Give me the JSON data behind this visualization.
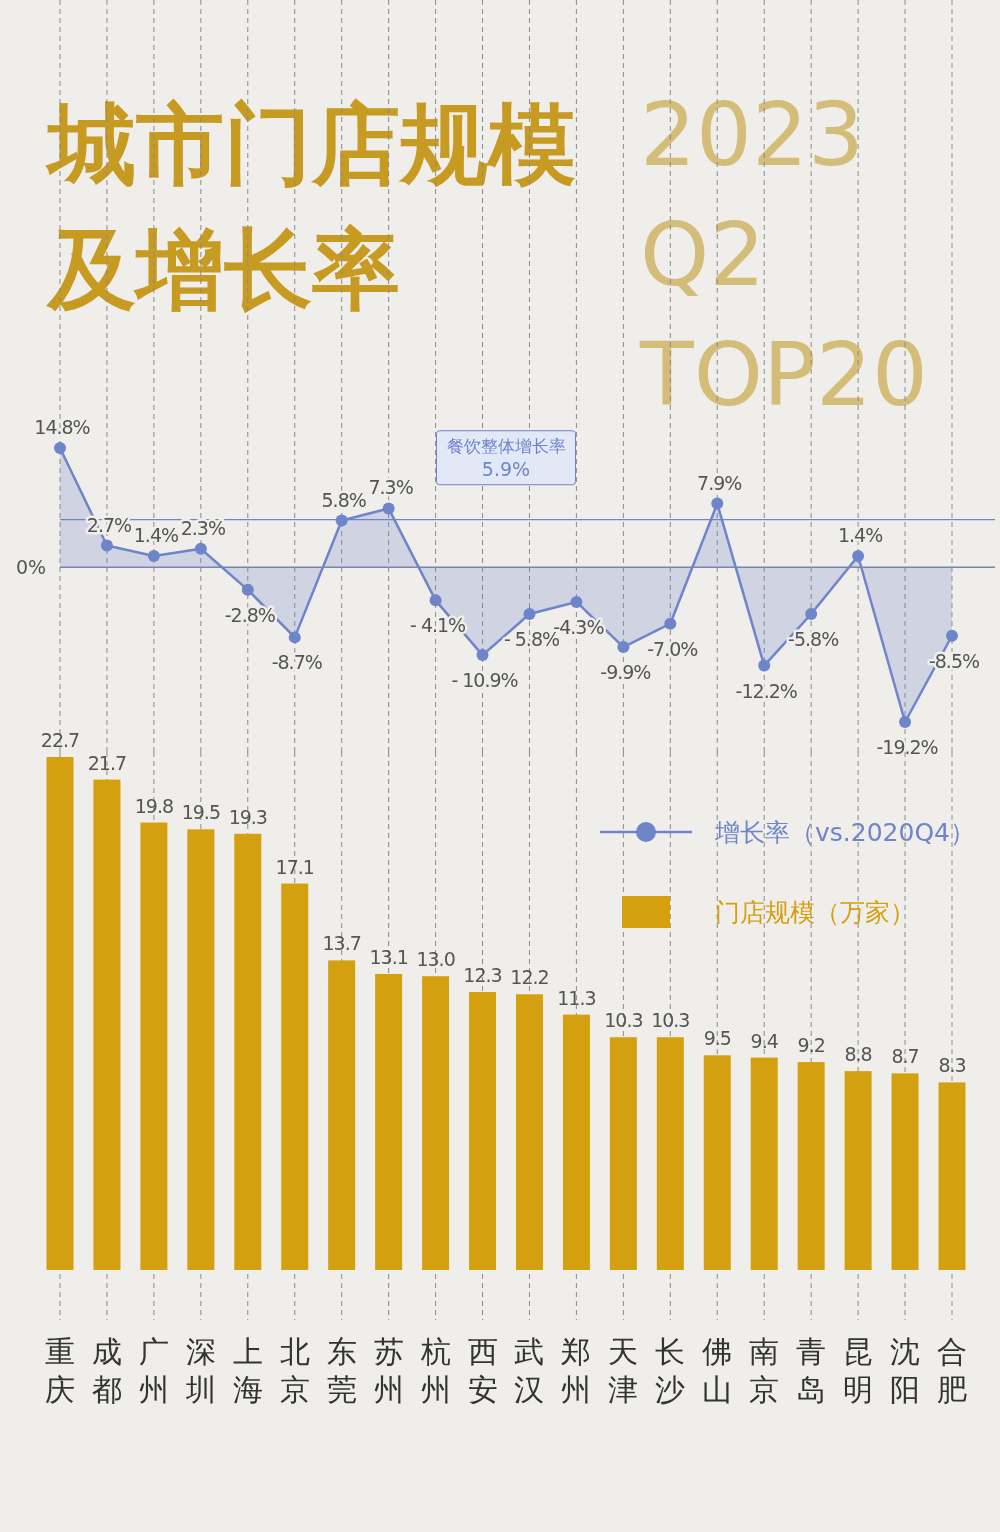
{
  "chart_data": [
    {
      "type": "area",
      "title": "城市门店规模及增长率",
      "subtitle": "2023 Q2 TOP20",
      "categories": [
        "重庆",
        "成都",
        "广州",
        "深圳",
        "上海",
        "北京",
        "东莞",
        "苏州",
        "杭州",
        "西安",
        "武汉",
        "郑州",
        "天津",
        "长沙",
        "佛山",
        "南京",
        "青岛",
        "昆明",
        "沈阳",
        "合肥"
      ],
      "series": [
        {
          "name": "增长率（vs.2020Q4）",
          "color": "#6f85c9",
          "values": [
            14.8,
            2.7,
            1.4,
            2.3,
            -2.8,
            -8.7,
            5.8,
            7.3,
            -4.1,
            -10.9,
            -5.8,
            -4.3,
            -9.9,
            -7.0,
            7.9,
            -12.2,
            -5.8,
            1.4,
            -19.2,
            -8.5
          ],
          "value_labels": [
            "14.8%",
            "2.7%",
            "1.4%",
            "2.3%",
            "-2.8%",
            "-8.7%",
            "5.8%",
            "7.3%",
            "- 4.1%",
            "- 10.9%",
            "- 5.8%",
            "-4.3%",
            "-9.9%",
            "-7.0%",
            "7.9%",
            "-12.2%",
            "-5.8%",
            "1.4%",
            "-19.2%",
            "-8.5%"
          ]
        }
      ],
      "ref_lines": [
        {
          "axis": "y",
          "value": 0,
          "label": "0%",
          "color": "#7a86a8"
        },
        {
          "axis": "y",
          "value": 5.9,
          "label": "5.9%",
          "color": "#6f85c9"
        }
      ],
      "annotations": [
        "餐饮整体增长率"
      ],
      "grid": "x",
      "legend": "bottom right",
      "marker": "circle",
      "tick_labels": false
    },
    {
      "type": "bar",
      "categories": [
        "重庆",
        "成都",
        "广州",
        "深圳",
        "上海",
        "北京",
        "东莞",
        "苏州",
        "杭州",
        "西安",
        "武汉",
        "郑州",
        "天津",
        "长沙",
        "佛山",
        "南京",
        "青岛",
        "昆明",
        "沈阳",
        "合肥"
      ],
      "series": [
        {
          "name": "门店规模（万家）",
          "color": "#d5a00f",
          "values": [
            22.7,
            21.7,
            19.8,
            19.5,
            19.3,
            17.1,
            13.7,
            13.1,
            13.0,
            12.3,
            12.2,
            11.3,
            10.3,
            10.3,
            9.5,
            9.4,
            9.2,
            8.8,
            8.7,
            8.3
          ],
          "value_labels": [
            "22.7",
            "21.7",
            "19.8",
            "19.5",
            "19.3",
            "17.1",
            "13.7",
            "13.1",
            "13.0",
            "12.3",
            "12.2",
            "11.3",
            "10.3",
            "10.3",
            "9.5",
            "9.4",
            "9.2",
            "8.8",
            "8.7",
            "8.3"
          ]
        }
      ],
      "grid": "x",
      "legend": "top right",
      "tick_labels": "x"
    }
  ]
}
